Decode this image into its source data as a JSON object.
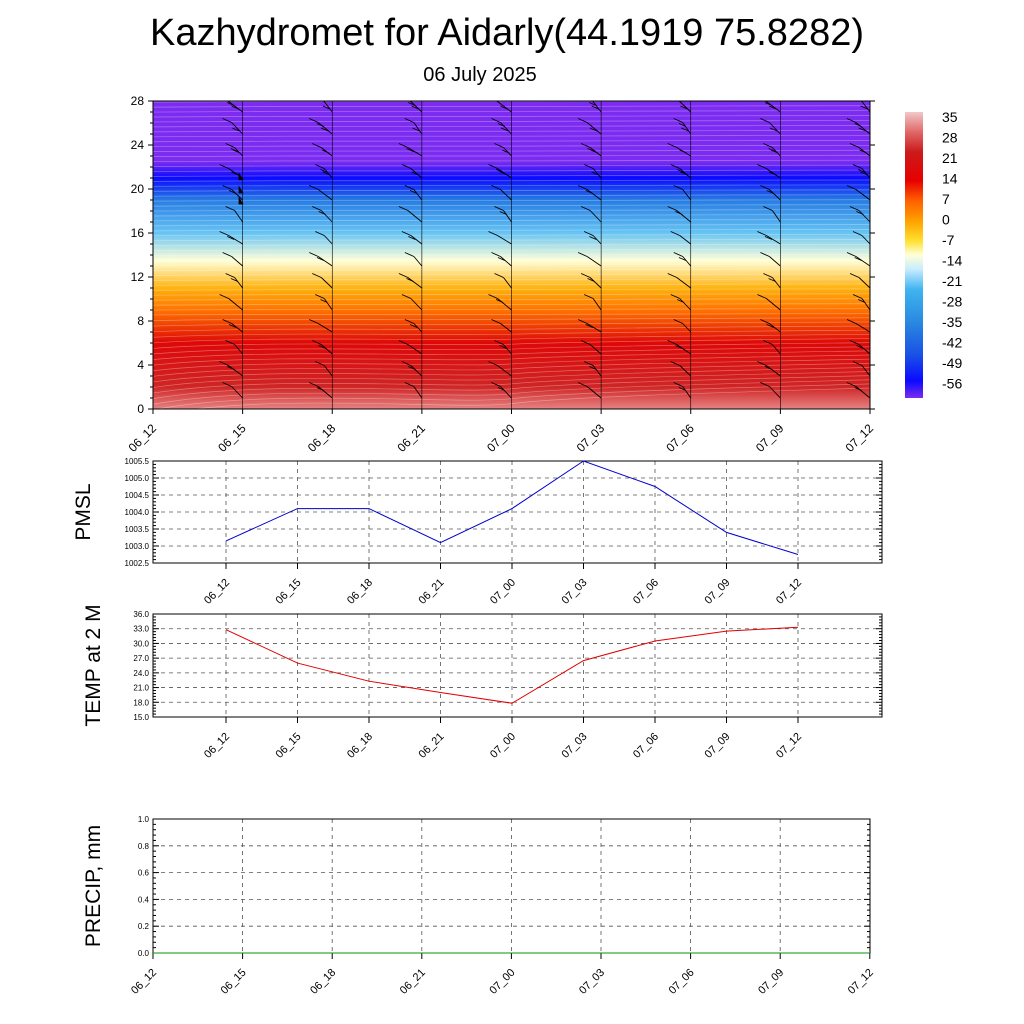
{
  "header": {
    "title": "Kazhydromet for Aidarly(44.1919 75.8282)",
    "date": "06 July 2025"
  },
  "chart_data": [
    {
      "type": "heatmap",
      "title": "",
      "xlabel": "",
      "ylabel": "",
      "x_ticks": [
        "06_12",
        "06_15",
        "06_18",
        "06_21",
        "07_00",
        "07_03",
        "07_06",
        "07_09",
        "07_12"
      ],
      "y_ticks": [
        0,
        4,
        8,
        12,
        16,
        20,
        24,
        28
      ],
      "ylim": [
        0,
        28
      ],
      "color_scale_labels": [
        "35",
        "28",
        "21",
        "14",
        "7",
        "0",
        "-7",
        "-14",
        "-21",
        "-28",
        "-35",
        "-42",
        "-49",
        "-56"
      ],
      "color_stops": [
        {
          "value": 38,
          "color": "#f2c8c8"
        },
        {
          "value": 31,
          "color": "#e06868"
        },
        {
          "value": 24,
          "color": "#cc1a1a"
        },
        {
          "value": 14,
          "color": "#e60000"
        },
        {
          "value": 7,
          "color": "#ff6000"
        },
        {
          "value": 0,
          "color": "#ffa000"
        },
        {
          "value": -7,
          "color": "#ffe030"
        },
        {
          "value": -12,
          "color": "#ffffd8"
        },
        {
          "value": -17,
          "color": "#c8ecff"
        },
        {
          "value": -24,
          "color": "#40b4f0"
        },
        {
          "value": -35,
          "color": "#2a8be0"
        },
        {
          "value": -47,
          "color": "#1a50e6"
        },
        {
          "value": -56,
          "color": "#0a0aff"
        },
        {
          "value": -62,
          "color": "#7b2cf0"
        }
      ],
      "temperature_by_height": [
        {
          "height": 0,
          "temperature": 33
        },
        {
          "height": 2,
          "temperature": 25
        },
        {
          "height": 6,
          "temperature": 17
        },
        {
          "height": 9,
          "temperature": 5
        },
        {
          "height": 11,
          "temperature": -2
        },
        {
          "height": 13.5,
          "temperature": -12
        },
        {
          "height": 16,
          "temperature": -22
        },
        {
          "height": 19,
          "temperature": -38
        },
        {
          "height": 21,
          "temperature": -56
        },
        {
          "height": 22.5,
          "temperature": -62
        },
        {
          "height": 28,
          "temperature": -62
        }
      ],
      "wind_barb_levels": [
        1,
        3,
        5,
        7,
        9,
        11,
        13,
        15,
        17,
        19,
        21,
        23,
        25,
        27
      ],
      "colors": {
        "barb": "#000000"
      }
    },
    {
      "type": "line",
      "title": "",
      "xlabel": "",
      "ylabel": "PMSL",
      "categories": [
        "06_12",
        "06_15",
        "06_18",
        "06_21",
        "07_00",
        "07_03",
        "07_06",
        "07_09",
        "07_12"
      ],
      "ylim": [
        1002.5,
        1005.5
      ],
      "y_ticks": [
        "1002.5",
        "1003.0",
        "1003.5",
        "1004.0",
        "1004.5",
        "1005.0",
        "1005.5"
      ],
      "series": [
        {
          "values": [
            1003.15,
            1004.1,
            1004.1,
            1003.1,
            1004.1,
            1005.5,
            1004.75,
            1003.4,
            1002.75
          ],
          "color": "#0000cc"
        }
      ]
    },
    {
      "type": "line",
      "title": "",
      "xlabel": "",
      "ylabel": "TEMP at 2 M",
      "categories": [
        "06_12",
        "06_15",
        "06_18",
        "06_21",
        "07_00",
        "07_03",
        "07_06",
        "07_09",
        "07_12"
      ],
      "ylim": [
        15.0,
        36.0
      ],
      "y_ticks": [
        "15.0",
        "18.0",
        "21.0",
        "24.0",
        "27.0",
        "30.0",
        "33.0",
        "36.0"
      ],
      "series": [
        {
          "values": [
            32.8,
            26.0,
            22.3,
            20.0,
            17.8,
            26.5,
            30.5,
            32.5,
            33.3
          ],
          "color": "#e00000"
        }
      ]
    },
    {
      "type": "line",
      "title": "",
      "xlabel": "",
      "ylabel": "PRECIP, mm",
      "categories": [
        "06_12",
        "06_15",
        "06_18",
        "06_21",
        "07_00",
        "07_03",
        "07_06",
        "07_09",
        "07_12"
      ],
      "ylim": [
        0.0,
        1.0
      ],
      "y_ticks": [
        "0.0",
        "0.2",
        "0.4",
        "0.6",
        "0.8",
        "1.0"
      ],
      "series": [
        {
          "values": [
            0,
            0,
            0,
            0,
            0,
            0,
            0,
            0,
            0
          ],
          "color": "#009900"
        }
      ]
    }
  ]
}
